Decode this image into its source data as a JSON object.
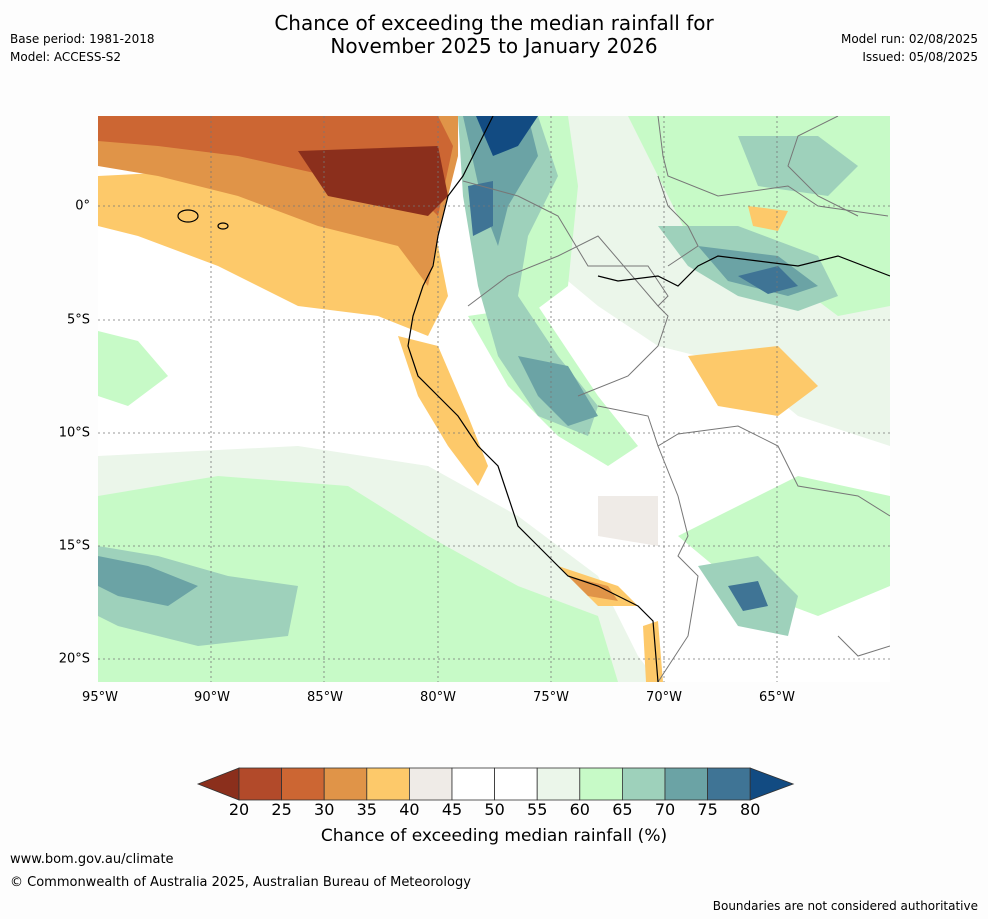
{
  "header": {
    "title_line1": "Chance of exceeding the median rainfall for",
    "title_line2": "November 2025 to January 2026",
    "base_period": "Base period: 1981-2018",
    "model": "Model: ACCESS-S2",
    "model_run": "Model run: 02/08/2025",
    "issued": "Issued: 05/08/2025"
  },
  "map": {
    "lon_labels": [
      "95°W",
      "90°W",
      "85°W",
      "80°W",
      "75°W",
      "70°W",
      "65°W"
    ],
    "lat_labels": [
      "0°",
      "5°S",
      "10°S",
      "15°S",
      "20°S"
    ]
  },
  "legend": {
    "ticks": [
      "20",
      "25",
      "30",
      "35",
      "40",
      "45",
      "50",
      "55",
      "60",
      "65",
      "70",
      "75",
      "80"
    ],
    "colors": [
      "#8b2f1c",
      "#b24a2a",
      "#cc6633",
      "#e09448",
      "#fdc96a",
      "#efebe7",
      "#ffffff",
      "#ffffff",
      "#ebf6ea",
      "#c7fac7",
      "#9ed1bb",
      "#6ba3a5",
      "#3f7495",
      "#124b82"
    ],
    "title": "Chance of exceeding median rainfall (%)"
  },
  "footer": {
    "url": "www.bom.gov.au/climate",
    "copyright": "© Commonwealth of Australia 2025, Australian Bureau of Meteorology",
    "note": "Boundaries are not considered authoritative"
  }
}
